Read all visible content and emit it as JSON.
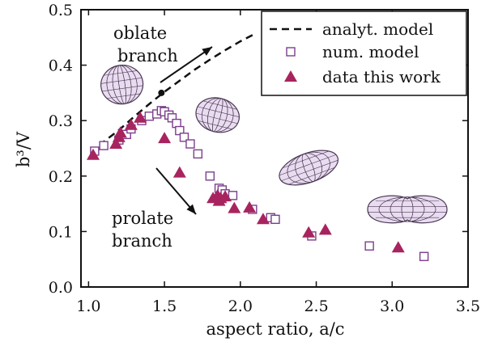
{
  "chart_data": {
    "type": "scatter",
    "title": "",
    "xlabel": "aspect ratio, a/c",
    "ylabel": "b³/V",
    "xlim": [
      0.95,
      3.5
    ],
    "ylim": [
      0.0,
      0.5
    ],
    "xticks": [
      "1.0",
      "1.5",
      "2.0",
      "2.5",
      "3.0",
      "3.5"
    ],
    "yticks": [
      "0.0",
      "0.1",
      "0.2",
      "0.3",
      "0.4",
      "0.5"
    ],
    "grid": false,
    "legend_position": "top-right",
    "series": [
      {
        "name": "analyt. model",
        "style": "dashed-line",
        "color": "#111111",
        "x": [
          1.02,
          1.1,
          1.2,
          1.3,
          1.4,
          1.5,
          1.6,
          1.7,
          1.8,
          1.9,
          2.0,
          2.1
        ],
        "y": [
          0.238,
          0.262,
          0.283,
          0.307,
          0.33,
          0.352,
          0.372,
          0.392,
          0.41,
          0.427,
          0.443,
          0.457
        ]
      },
      {
        "name": "num. model",
        "style": "open-square",
        "color": "#7b3f8c",
        "x": [
          1.04,
          1.1,
          1.2,
          1.25,
          1.28,
          1.35,
          1.4,
          1.45,
          1.48,
          1.5,
          1.53,
          1.55,
          1.58,
          1.6,
          1.63,
          1.67,
          1.72,
          1.8,
          1.86,
          1.88,
          1.9,
          1.95,
          2.08,
          2.2,
          2.23,
          2.47,
          2.85,
          3.21
        ],
        "y": [
          0.245,
          0.255,
          0.265,
          0.275,
          0.285,
          0.3,
          0.308,
          0.312,
          0.318,
          0.316,
          0.31,
          0.305,
          0.295,
          0.282,
          0.27,
          0.258,
          0.24,
          0.2,
          0.178,
          0.175,
          0.168,
          0.165,
          0.14,
          0.125,
          0.122,
          0.092,
          0.074,
          0.055
        ]
      },
      {
        "name": "data this work",
        "style": "filled-triangle",
        "color": "#a8245f",
        "x": [
          1.03,
          1.18,
          1.2,
          1.21,
          1.28,
          1.34,
          1.5,
          1.6,
          1.82,
          1.85,
          1.86,
          1.87,
          1.9,
          1.96,
          2.06,
          2.15,
          2.45,
          2.56,
          3.04
        ],
        "y": [
          0.238,
          0.258,
          0.27,
          0.278,
          0.292,
          0.305,
          0.268,
          0.206,
          0.16,
          0.165,
          0.155,
          0.16,
          0.163,
          0.142,
          0.143,
          0.122,
          0.098,
          0.103,
          0.071
        ]
      }
    ],
    "markers": [
      {
        "x": 1.48,
        "y": 0.35
      }
    ],
    "annotations": {
      "oblate": [
        "oblate",
        "branch"
      ],
      "prolate": [
        "prolate",
        "branch"
      ]
    },
    "insets": [
      {
        "x": 1.22,
        "y": 0.365,
        "shape": "oblate"
      },
      {
        "x": 1.85,
        "y": 0.31,
        "shape": "spheroid"
      },
      {
        "x": 2.45,
        "y": 0.215,
        "shape": "prolate"
      },
      {
        "x": 3.1,
        "y": 0.14,
        "shape": "peanut"
      }
    ]
  }
}
